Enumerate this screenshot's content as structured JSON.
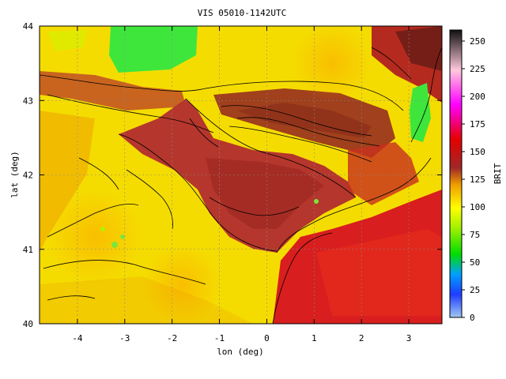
{
  "title": "VIS 05010-1142UTC",
  "chart_data": {
    "type": "heatmap",
    "title": "VIS 05010-1142UTC",
    "xlabel": "lon (deg)",
    "ylabel": "lat (deg)",
    "xlim": [
      -4.8,
      3.7
    ],
    "ylim": [
      40,
      44
    ],
    "x_ticks": [
      "-4",
      "-3",
      "-2",
      "-1",
      "0",
      "1",
      "2",
      "3"
    ],
    "x_tick_values": [
      -4,
      -3,
      -2,
      -1,
      0,
      1,
      2,
      3
    ],
    "y_ticks": [
      "40",
      "41",
      "42",
      "43",
      "44"
    ],
    "y_tick_values": [
      40,
      41,
      42,
      43,
      44
    ],
    "grid": true,
    "colorbar": {
      "label": "BRIT",
      "range": [
        0,
        260
      ],
      "ticks": [
        "0",
        "25",
        "50",
        "75",
        "100",
        "125",
        "150",
        "175",
        "200",
        "225",
        "250"
      ],
      "tick_values": [
        0,
        25,
        50,
        75,
        100,
        125,
        150,
        175,
        200,
        225,
        250
      ],
      "colors": [
        "#a0c8f0",
        "#1e3cff",
        "#00a0ff",
        "#00dd00",
        "#a0f000",
        "#ffff00",
        "#f0a000",
        "#a02828",
        "#e60000",
        "#ff00ff",
        "#ffc8dc",
        "#101010"
      ]
    },
    "regions": [
      {
        "name": "north-green-patch",
        "value": 60,
        "color": "#3ee63c"
      },
      {
        "name": "east-green-patch",
        "value": 60,
        "color": "#3ee63c"
      },
      {
        "name": "ebro-valley",
        "value": 135,
        "color": "#b5362c"
      },
      {
        "name": "southeast-red",
        "value": 150,
        "color": "#d81e1e"
      },
      {
        "name": "pyrenees",
        "value": 140,
        "color": "#a0401c"
      },
      {
        "name": "cantabria",
        "value": 120,
        "color": "#c8641e"
      },
      {
        "name": "yellow-plateau",
        "value": 95,
        "color": "#f5dc00"
      }
    ]
  }
}
